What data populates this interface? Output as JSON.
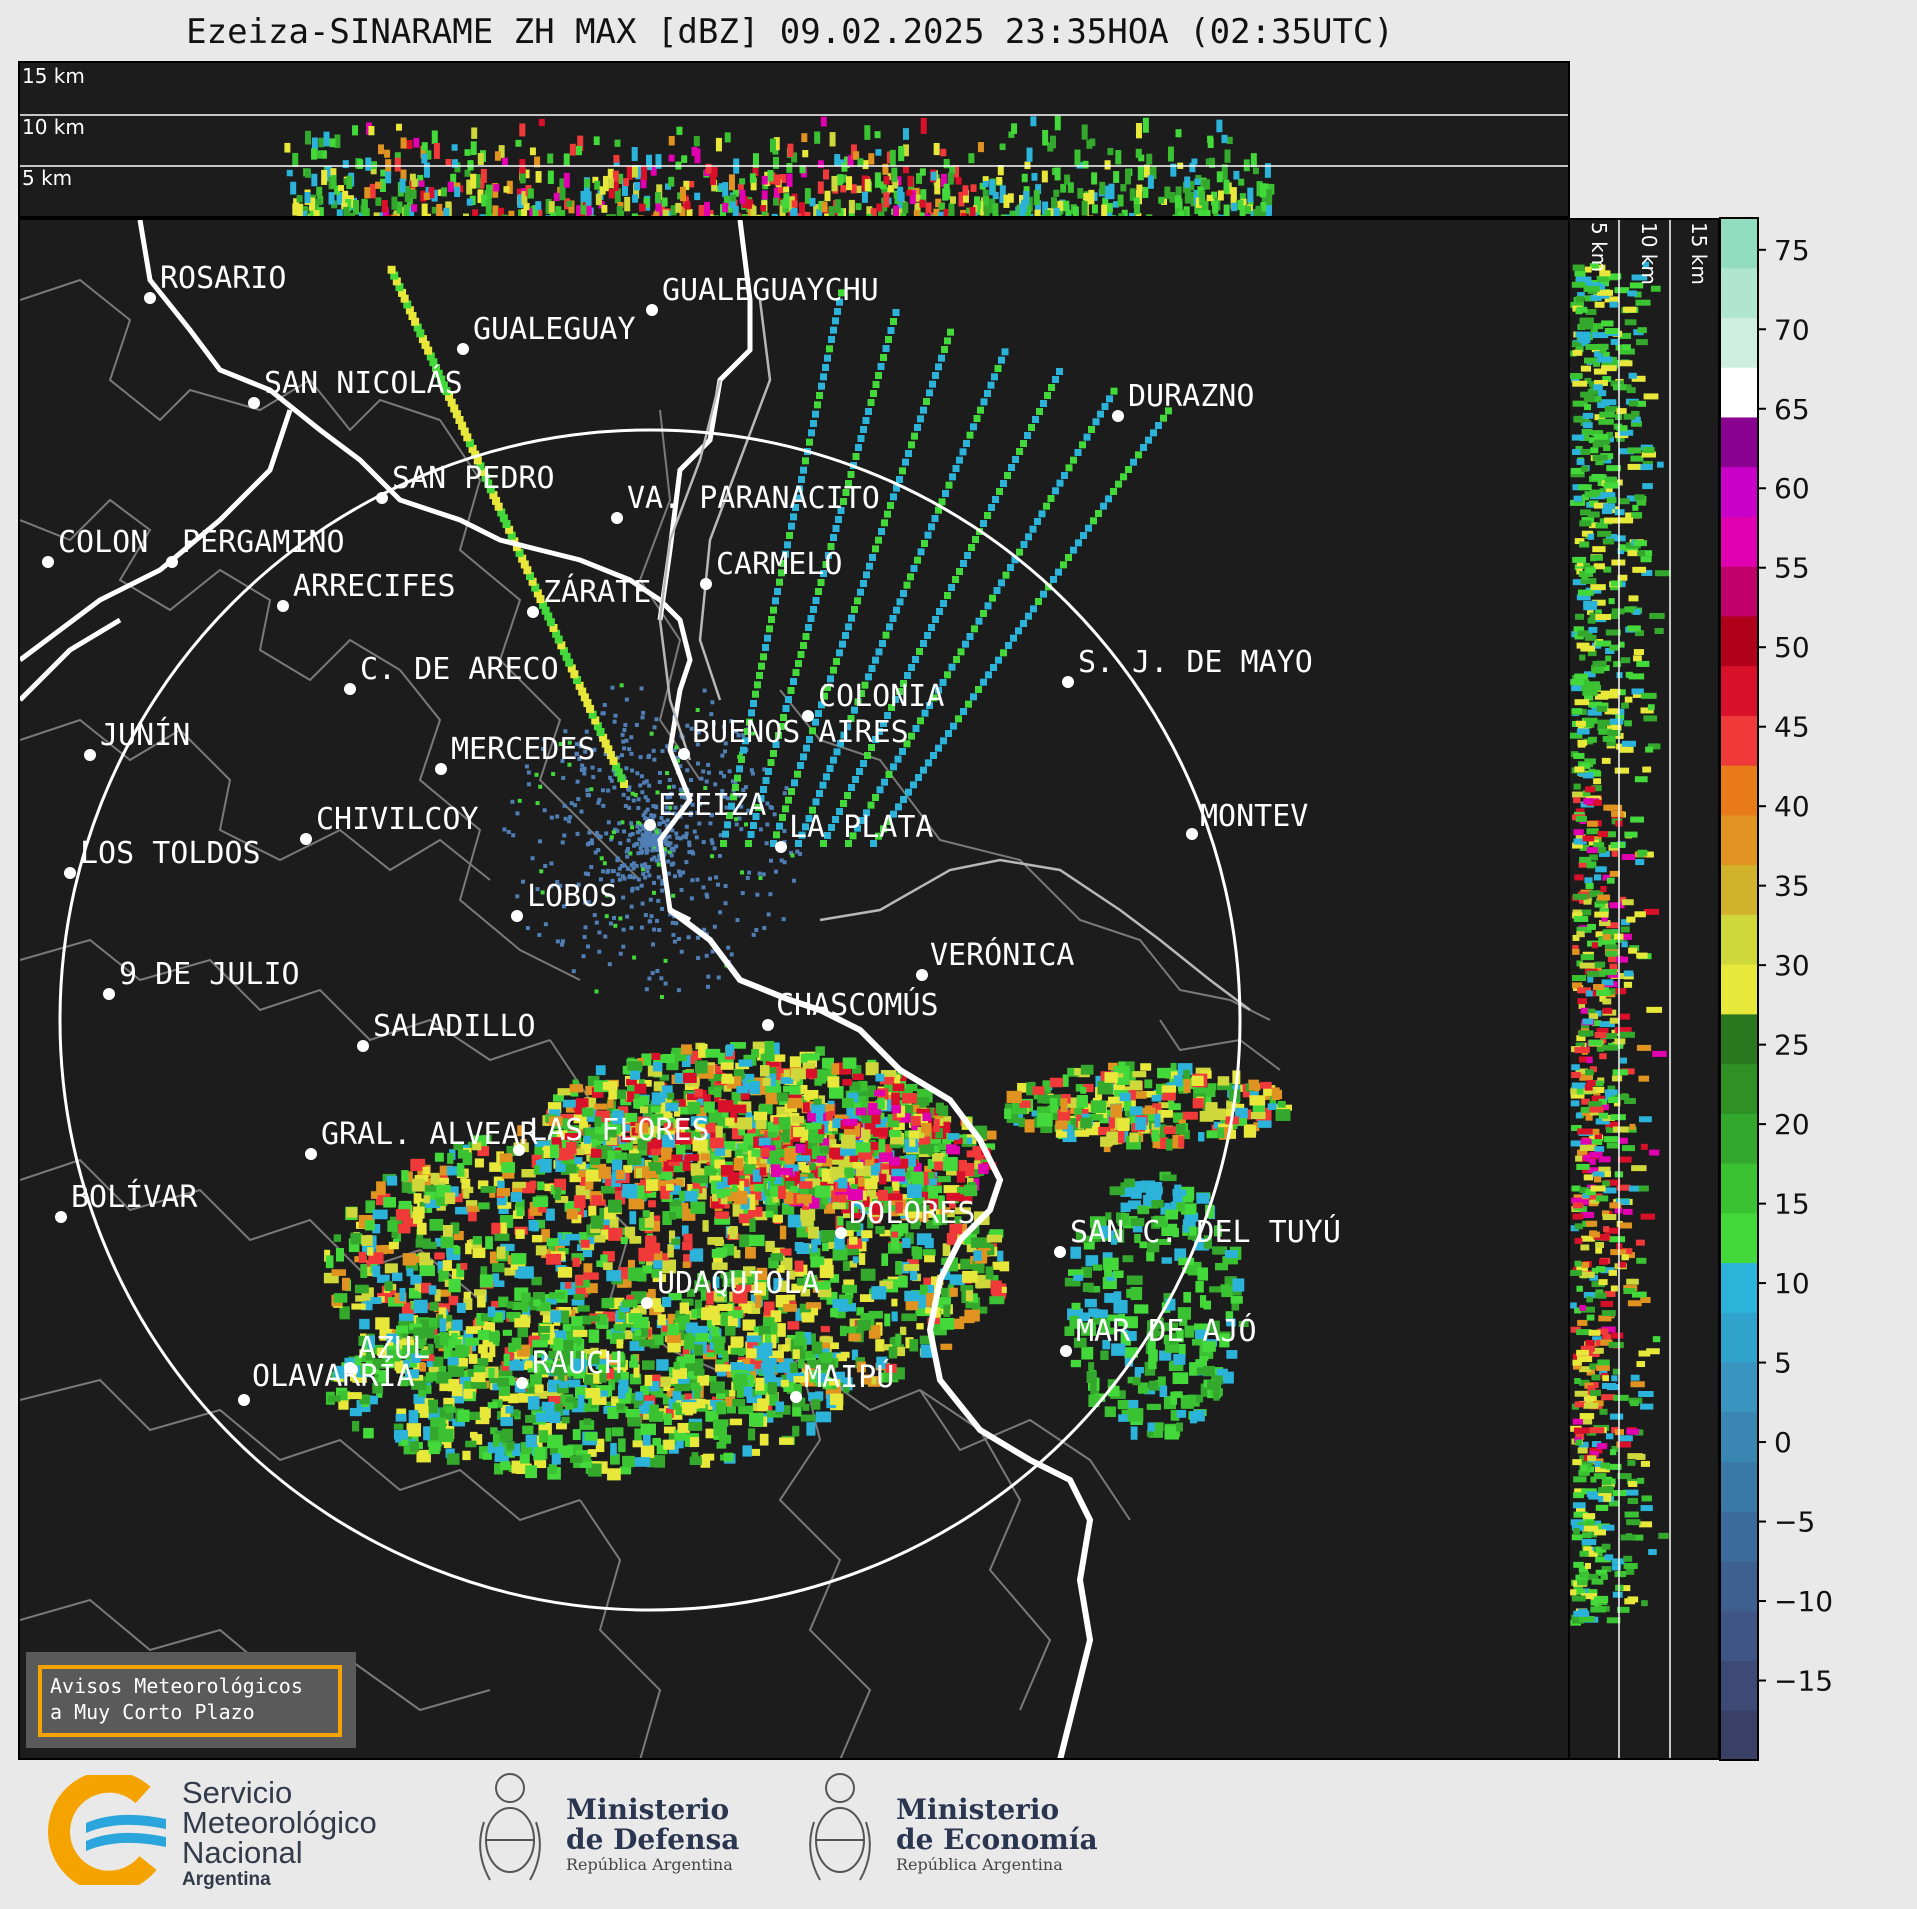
{
  "title": "Ezeiza-SINARAME ZH MAX [dBZ] 09.02.2025 23:35HOA (02:35UTC)",
  "top_panel": {
    "altitude_labels": [
      "15 km",
      "10 km",
      "5 km"
    ]
  },
  "side_panel": {
    "altitude_labels": [
      "5 km",
      "10 km",
      "15 km"
    ]
  },
  "colorbar": {
    "unit": "dBZ",
    "ticks": [
      "75",
      "70",
      "65",
      "60",
      "55",
      "50",
      "45",
      "40",
      "35",
      "30",
      "25",
      "20",
      "15",
      "10",
      "5",
      "0",
      "−5",
      "−10",
      "−15"
    ],
    "range": [
      -20,
      77
    ]
  },
  "map": {
    "radar_site": "EZEIZA",
    "cities": [
      {
        "name": "ROSARIO"
      },
      {
        "name": "GUALEGUAYCHU"
      },
      {
        "name": "GUALEGUAY"
      },
      {
        "name": "SAN NICOLÁS"
      },
      {
        "name": "DURAZNO"
      },
      {
        "name": "SAN PEDRO"
      },
      {
        "name": "VA. PARANACITO"
      },
      {
        "name": "COLON"
      },
      {
        "name": "PERGAMINO"
      },
      {
        "name": "CARMELO"
      },
      {
        "name": "ARRECIFES"
      },
      {
        "name": "ZÁRATE"
      },
      {
        "name": "C. DE ARECO"
      },
      {
        "name": "S. J. DE MAYO"
      },
      {
        "name": "COLONIA"
      },
      {
        "name": "JUNÍN"
      },
      {
        "name": "BUENOS AIRES"
      },
      {
        "name": "MERCEDES"
      },
      {
        "name": "EZEIZA"
      },
      {
        "name": "CHIVILCOY"
      },
      {
        "name": "LA PLATA"
      },
      {
        "name": "MONTEV"
      },
      {
        "name": "LOS TOLDOS"
      },
      {
        "name": "LOBOS"
      },
      {
        "name": "VERÓNICA"
      },
      {
        "name": "9 DE JULIO"
      },
      {
        "name": "CHASCOMÚS"
      },
      {
        "name": "SALADILLO"
      },
      {
        "name": "GRAL. ALVEAR"
      },
      {
        "name": "LAS FLORES"
      },
      {
        "name": "BOLÍVAR"
      },
      {
        "name": "DOLORES"
      },
      {
        "name": "SAN C. DEL TUYÚ"
      },
      {
        "name": "UDAQUIOLA"
      },
      {
        "name": "MAR DE AJÓ"
      },
      {
        "name": "AZUL"
      },
      {
        "name": "RAUCH"
      },
      {
        "name": "OLAVARRÍA"
      },
      {
        "name": "MAIPÚ"
      }
    ]
  },
  "notice": {
    "line1": "Avisos Meteorológicos",
    "line2": "a Muy Corto Plazo"
  },
  "logos": {
    "smn": {
      "line1": "Servicio",
      "line2": "Meteorológico",
      "line3": "Nacional",
      "line4": "Argentina"
    },
    "defensa": {
      "line1": "Ministerio",
      "line2": "de Defensa",
      "sub": "República Argentina"
    },
    "economia": {
      "line1": "Ministerio",
      "line2": "de Economía",
      "sub": "República Argentina"
    }
  },
  "colors": {
    "background": "#e9e9e9",
    "panel": "#1c1c1c",
    "smn_blue": "#2aa6dc",
    "smn_orange": "#f5a300",
    "notice_border": "#f5a300"
  }
}
